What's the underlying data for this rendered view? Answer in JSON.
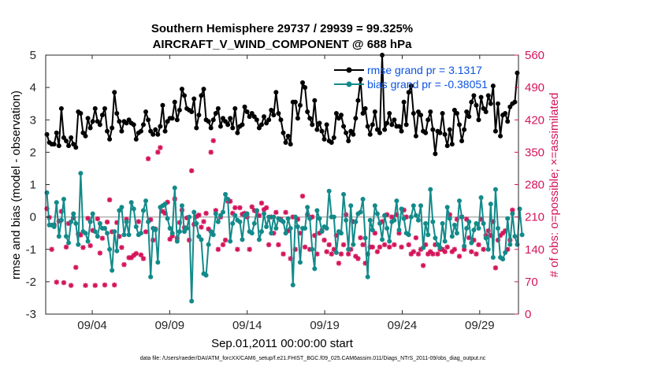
{
  "chart_data": {
    "type": "line",
    "title_line1": "Southern Hemisphere 29737 / 29939 = 99.325%",
    "title_line2": "AIRCRAFT_V_WIND_COMPONENT @ 688 hPa",
    "xlabel": "Sep.01,2011 00:00:00 start",
    "ylabel_left": "rmse and bias (model - observation)",
    "ylabel_right": "# of obs: o=possible; ×=assimilated",
    "footer": "data file: /Users/raeder/DAI/ATM_forcXX/CAM6_setup/f.e21.FHIST_BGC.f09_025.CAM6assim.011/Diags_NTrS_2011-09/obs_diag_output.nc",
    "xlim": [
      0.0,
      30.5
    ],
    "ylim_left": [
      -3,
      5
    ],
    "ylim_right": [
      0,
      560
    ],
    "xticks": [
      3.0,
      8.0,
      13.0,
      18.0,
      23.0,
      28.0
    ],
    "xtick_labels": [
      "09/04",
      "09/09",
      "09/14",
      "09/19",
      "09/24",
      "09/29"
    ],
    "yticks_left": [
      -3,
      -2,
      -1,
      0,
      1,
      2,
      3,
      4,
      5
    ],
    "yticks_right": [
      0,
      70,
      140,
      210,
      280,
      350,
      420,
      490,
      560
    ],
    "zero_line": 0,
    "colors": {
      "rmse": "#000000",
      "bias": "#138a8a",
      "obs": "#d4145a",
      "legend_text": "#0a52e0",
      "zero_line": "#b0b0b0",
      "axis_right": "#d4145a"
    },
    "series": [
      {
        "name": "rmse grand pr = 3.1317",
        "values": [
          2.55,
          2.3,
          2.25,
          2.25,
          2.6,
          2.2,
          3.35,
          2.45,
          2.35,
          2.2,
          2.45,
          2.25,
          2.15,
          3.25,
          3.2,
          2.6,
          2.5,
          3.05,
          2.75,
          2.95,
          3.35,
          2.95,
          2.85,
          3.15,
          3.35,
          2.65,
          2.4,
          2.75,
          3.85,
          3.2,
          2.95,
          2.65,
          2.95,
          2.9,
          3.0,
          2.9,
          2.85,
          2.4,
          2.6,
          2.65,
          2.85,
          3.25,
          3.0,
          2.65,
          2.55,
          2.7,
          2.55,
          2.8,
          3.45,
          2.65,
          2.95,
          3.05,
          3.05,
          3.55,
          3.0,
          3.3,
          3.95,
          3.75,
          3.35,
          3.3,
          3.25,
          3.65,
          2.75,
          3.15,
          3.75,
          3.95,
          3.0,
          2.95,
          2.75,
          3.0,
          3.2,
          3.35,
          2.8,
          3.05,
          2.95,
          2.85,
          3.05,
          2.75,
          3.35,
          2.6,
          2.8,
          2.85,
          3.4,
          3.25,
          3.1,
          3.2,
          3.1,
          3.0,
          2.75,
          2.85,
          3.1,
          2.9,
          3.0,
          3.3,
          3.15,
          3.85,
          3.2,
          3.0,
          2.6,
          2.3,
          2.5,
          2.25,
          3.55,
          3.55,
          3.05,
          3.45,
          4.15,
          4.0,
          3.25,
          3.05,
          2.85,
          3.6,
          2.7,
          2.9,
          2.65,
          2.4,
          2.85,
          2.35,
          2.3,
          2.45,
          3.2,
          3.05,
          3.15,
          2.8,
          2.6,
          2.35,
          2.65,
          2.55,
          3.05,
          3.6,
          4.25,
          3.2,
          3.35,
          2.8,
          2.55,
          2.85,
          3.25,
          2.7,
          2.6,
          5.0,
          2.7,
          2.9,
          3.2,
          2.85,
          3.0,
          2.8,
          2.8,
          2.65,
          3.55,
          2.85,
          3.85,
          4.05,
          3.2,
          2.5,
          3.25,
          3.15,
          2.65,
          2.6,
          3.0,
          3.25,
          2.7,
          1.95,
          2.65,
          2.6,
          3.2,
          2.55,
          2.2,
          2.7,
          2.25,
          3.3,
          3.2,
          2.85,
          2.35,
          2.7,
          3.25,
          3.1,
          3.55,
          3.75,
          3.45,
          3.0,
          3.7,
          3.35,
          3.25,
          3.75,
          3.5,
          4.05,
          2.65,
          3.5,
          2.5,
          3.15,
          3.2,
          2.95,
          3.4,
          3.5,
          3.55,
          4.45
        ]
      },
      {
        "name": "bias grand pr = -0.38051",
        "values": [
          0.75,
          -0.25,
          -0.25,
          -0.3,
          0.45,
          -0.6,
          -0.1,
          0.55,
          -0.6,
          -0.8,
          -0.15,
          0.1,
          -0.2,
          -0.85,
          1.35,
          -0.45,
          -0.5,
          -0.75,
          -0.15,
          0.1,
          -0.45,
          -0.6,
          -0.2,
          -0.35,
          -0.35,
          -0.5,
          -1.0,
          -1.65,
          -0.45,
          -1.05,
          0.2,
          0.3,
          -0.55,
          -0.15,
          -0.55,
          0.45,
          0.25,
          -0.3,
          -0.55,
          -0.5,
          0.2,
          0.5,
          -0.15,
          -1.85,
          -0.35,
          -0.4,
          -1.4,
          0.3,
          0.35,
          0.4,
          -0.05,
          -0.35,
          -0.5,
          0.9,
          -0.75,
          -0.45,
          0.35,
          -0.45,
          -0.35,
          0.0,
          -2.6,
          0.15,
          -0.2,
          -0.6,
          -0.7,
          -1.75,
          -1.8,
          -0.85,
          -0.45,
          -0.55,
          0.1,
          -0.15,
          0.05,
          0.15,
          0.7,
          0.55,
          -0.75,
          -0.2,
          0.05,
          -0.1,
          -0.15,
          -0.7,
          0.05,
          0.1,
          -0.45,
          -0.5,
          -0.2,
          0.2,
          -0.7,
          -0.45,
          0.1,
          -0.3,
          0.0,
          -0.5,
          0.0,
          -0.35,
          -0.05,
          -0.1,
          -0.15,
          -0.5,
          -0.05,
          -0.35,
          -2.1,
          0.0,
          -0.3,
          -1.4,
          -0.35,
          -0.35,
          0.3,
          -0.05,
          -1.0,
          -1.6,
          0.2,
          -0.05,
          -0.45,
          -0.3,
          -0.35,
          0.8,
          0.0,
          0.0,
          -1.1,
          -0.45,
          -0.5,
          0.7,
          -0.1,
          -1.0,
          0.35,
          -0.85,
          -0.15,
          0.1,
          0.15,
          0.55,
          -0.65,
          -1.85,
          -0.1,
          -0.4,
          0.35,
          0.1,
          -0.2,
          -0.7,
          0.05,
          -0.35,
          -0.75,
          -0.15,
          -0.1,
          0.5,
          -0.4,
          0.25,
          -0.05,
          -0.5,
          -0.55,
          0.0,
          0.35,
          0.05,
          -0.1,
          0.35,
          -0.95,
          -0.2,
          -0.55,
          0.85,
          -0.15,
          -0.65,
          -0.85,
          -0.95,
          -0.2,
          -0.75,
          0.3,
          -0.05,
          -0.6,
          -0.25,
          -0.5,
          0.5,
          0.0,
          -0.9,
          -0.35,
          -0.15,
          -0.8,
          -0.4,
          -0.2,
          -0.35,
          0.6,
          -0.2,
          -0.65,
          -1.0,
          0.4,
          -1.25,
          0.85,
          -0.35,
          -1.25,
          -1.3,
          -1.1,
          -0.05,
          -0.85,
          0.1,
          -0.6,
          -0.85,
          0.25,
          -0.55
        ]
      },
      {
        "name": "obs_possible",
        "values": [
          228,
          209,
          140,
          193,
          69,
          201,
          222,
          68,
          145,
          196,
          62,
          208,
          101,
          173,
          171,
          144,
          62,
          207,
          148,
          181,
          62,
          206,
          132,
          164,
          63,
          199,
          247,
          178,
          63,
          198,
          168,
          144,
          107,
          205,
          122,
          122,
          127,
          131,
          200,
          128,
          120,
          178,
          336,
          204,
          160,
          184,
          350,
          360,
          222,
          218,
          242,
          162,
          169,
          249,
          164,
          198,
          225,
          187,
          208,
          160,
          310,
          194,
          211,
          214,
          188,
          200,
          218,
          184,
          350,
          375,
          224,
          140,
          210,
          150,
          160,
          244,
          244,
          218,
          230,
          140,
          230,
          216,
          218,
          210,
          140,
          232,
          224,
          223,
          213,
          240,
          226,
          230,
          150,
          210,
          175,
          220,
          150,
          205,
          130,
          220,
          180,
          120,
          210,
          140,
          205,
          175,
          255,
          145,
          215,
          140,
          210,
          170,
          130,
          175,
          180,
          160,
          135,
          150,
          130,
          140,
          170,
          110,
          130,
          150,
          215,
          130,
          140,
          200,
          125,
          120,
          165,
          150,
          110,
          130,
          145,
          145,
          175,
          135,
          145,
          200,
          150,
          215,
          145,
          210,
          150,
          215,
          175,
          145,
          225,
          210,
          150,
          130,
          135,
          165,
          130,
          140,
          105,
          150,
          130,
          135,
          130,
          150,
          130,
          140,
          140,
          135,
          145,
          215,
          135,
          140,
          205,
          125,
          210,
          140,
          205,
          165,
          135,
          160,
          130,
          150,
          205,
          140,
          170,
          180,
          170,
          200,
          100,
          160,
          170,
          175,
          180,
          140,
          160,
          225
        ]
      }
    ]
  }
}
